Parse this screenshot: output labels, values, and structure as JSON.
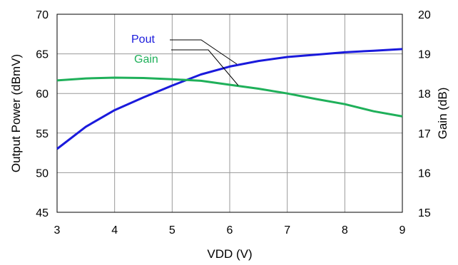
{
  "chart_data": {
    "type": "line",
    "xlabel": "VDD (V)",
    "ylabel": "Output Power (dBmV)",
    "y2label": "Gain (dB)",
    "xlim": [
      3,
      9
    ],
    "ylim": [
      45,
      70
    ],
    "y2lim": [
      15,
      20
    ],
    "x_ticks": [
      "3",
      "4",
      "5",
      "6",
      "7",
      "8",
      "9"
    ],
    "y_ticks": [
      "45",
      "50",
      "55",
      "60",
      "65",
      "70"
    ],
    "y2_ticks": [
      "15",
      "16",
      "17",
      "18",
      "19",
      "20"
    ],
    "grid": true,
    "series": [
      {
        "name": "Pout",
        "axis": "left",
        "color": "#1a1adc",
        "x": [
          3,
          3.5,
          4,
          4.5,
          5,
          5.5,
          6,
          6.5,
          7,
          7.5,
          8,
          8.5,
          9
        ],
        "y": [
          53.0,
          55.8,
          57.9,
          59.5,
          61.0,
          62.4,
          63.4,
          64.1,
          64.6,
          64.9,
          65.2,
          65.4,
          65.6
        ]
      },
      {
        "name": "Gain",
        "axis": "right",
        "color": "#1fb05a",
        "x": [
          3,
          3.5,
          4,
          4.5,
          5,
          5.5,
          6,
          6.5,
          7,
          7.5,
          8,
          8.5,
          9
        ],
        "y": [
          18.33,
          18.38,
          18.4,
          18.39,
          18.36,
          18.32,
          18.22,
          18.12,
          18.0,
          17.86,
          17.73,
          17.55,
          17.42
        ]
      }
    ]
  }
}
